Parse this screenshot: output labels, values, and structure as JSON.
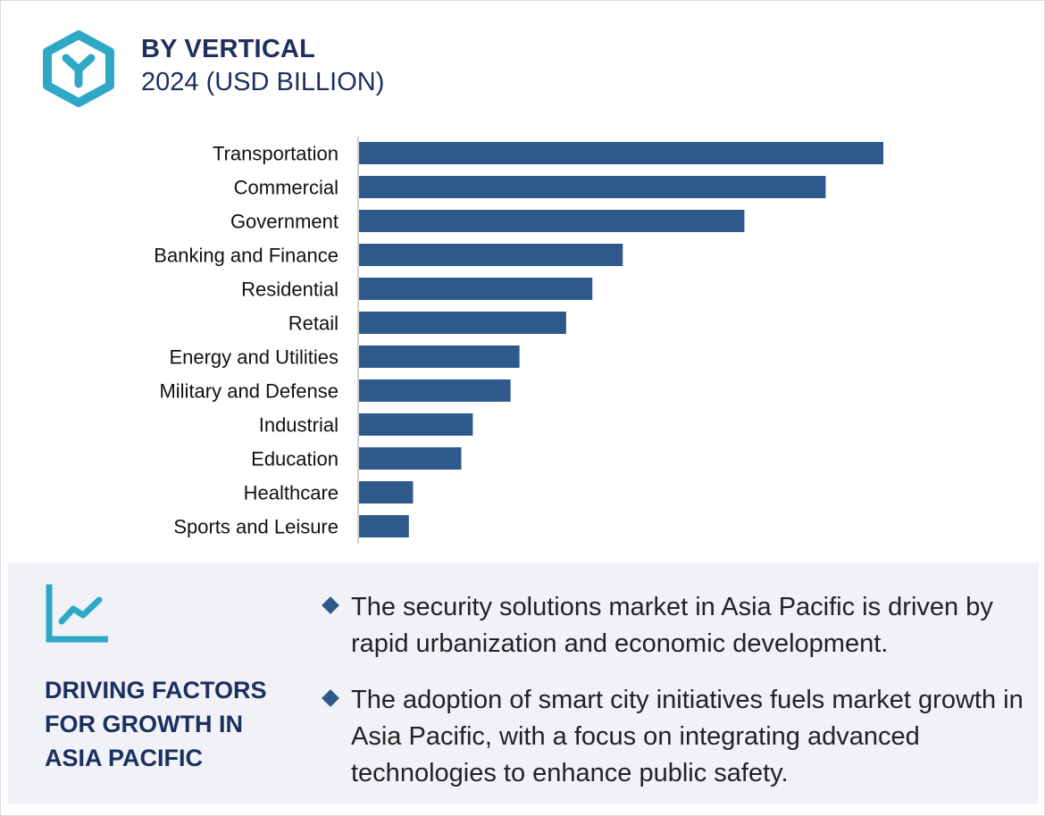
{
  "header": {
    "title": "BY VERTICAL",
    "subtitle": "2024 (USD BILLION)"
  },
  "colors": {
    "bar": "#2d5a8a",
    "accent": "#2fa8c8",
    "heading": "#1c2f5e",
    "panel_bg": "#f0f2f7"
  },
  "icons": {
    "logo": "hexagon-y-icon",
    "driving_factors": "trend-line-icon",
    "bullet": "diamond-bullet-icon"
  },
  "chart_data": {
    "type": "bar",
    "orientation": "horizontal",
    "categories": [
      "Transportation",
      "Commercial",
      "Government",
      "Banking and Finance",
      "Residential",
      "Retail",
      "Energy and Utilities",
      "Military and Defense",
      "Industrial",
      "Education",
      "Healthcare",
      "Sports and Leisure"
    ],
    "values": [
      100,
      89,
      73.5,
      50.3,
      44.5,
      39.5,
      30.6,
      28.9,
      21.7,
      19.5,
      10.3,
      9.5
    ],
    "value_scale": "relative (no axis ticks shown)",
    "title": "",
    "xlabel": "",
    "ylabel": "",
    "grid": false
  },
  "driving_factors": {
    "title": "DRIVING FACTORS FOR GROWTH IN ASIA PACIFIC",
    "bullets": [
      "The security solutions market in Asia Pacific is driven by rapid urbanization and economic development.",
      "The adoption of smart city initiatives fuels market growth in Asia Pacific, with a focus on integrating advanced technologies to enhance public safety."
    ]
  }
}
